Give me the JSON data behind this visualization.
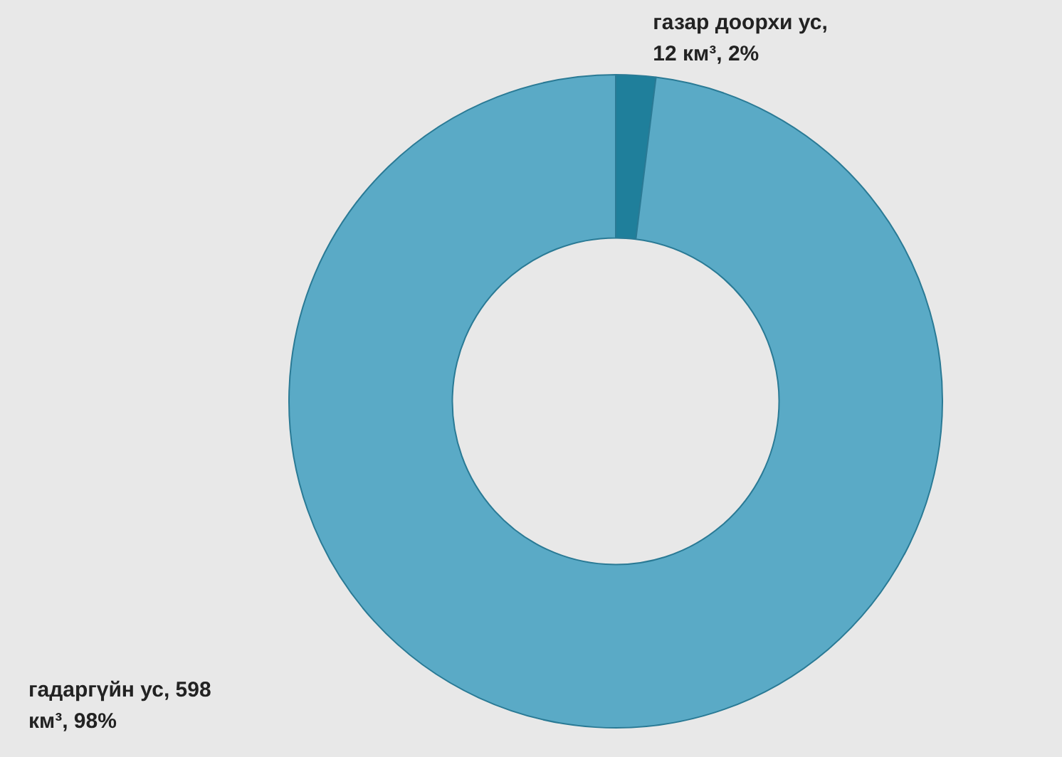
{
  "chart_data": {
    "type": "donut",
    "categories": [
      null,
      null
    ],
    "values": [
      12,
      598
    ],
    "colors": [
      "#1f7f9b",
      "#5aaac6"
    ],
    "value_labels": [
      "газар доорхи ус, 12 км³, 2%",
      "гадаргүйн ус, 598 км³, 98%"
    ],
    "legend": false
  }
}
